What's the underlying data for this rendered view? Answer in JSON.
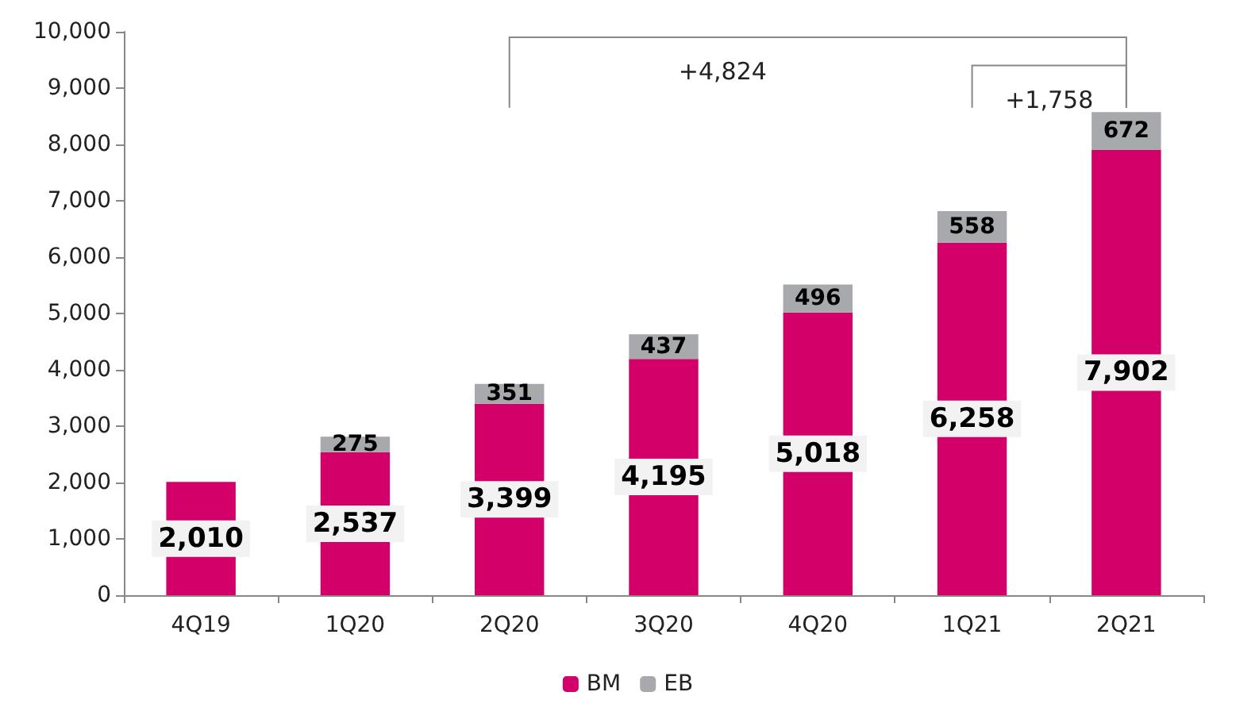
{
  "chart_data": {
    "type": "bar",
    "stacked": true,
    "categories": [
      "4Q19",
      "1Q20",
      "2Q20",
      "3Q20",
      "4Q20",
      "1Q21",
      "2Q21"
    ],
    "series": [
      {
        "name": "BM",
        "color": "#d4006a",
        "values": [
          2010,
          2537,
          3399,
          4195,
          5018,
          6258,
          7902
        ],
        "value_labels": [
          "2,010",
          "2,537",
          "3,399",
          "4,195",
          "5,018",
          "6,258",
          "7,902"
        ]
      },
      {
        "name": "EB",
        "color": "#a7a9ac",
        "values": [
          null,
          275,
          351,
          437,
          496,
          558,
          672
        ],
        "value_labels": [
          null,
          "275",
          "351",
          "437",
          "496",
          "558",
          "672"
        ]
      }
    ],
    "ylim": [
      0,
      10000
    ],
    "yticks": [
      0,
      {
        "value": 1000,
        "label": "1,000"
      },
      {
        "value": 2000,
        "label": "2,000"
      },
      {
        "value": 3000,
        "label": "3,000"
      },
      {
        "value": 4000,
        "label": "4,000"
      },
      {
        "value": 5000,
        "label": "5,000"
      },
      {
        "value": 6000,
        "label": "6,000"
      },
      {
        "value": 7000,
        "label": "7,000"
      },
      {
        "value": 8000,
        "label": "8,000"
      },
      {
        "value": 9000,
        "label": "9,000"
      },
      {
        "value": 10000,
        "label": "10,000"
      }
    ],
    "grid": false,
    "legend": "bottom",
    "annotations": [
      "+4,824",
      "+1,758"
    ]
  }
}
